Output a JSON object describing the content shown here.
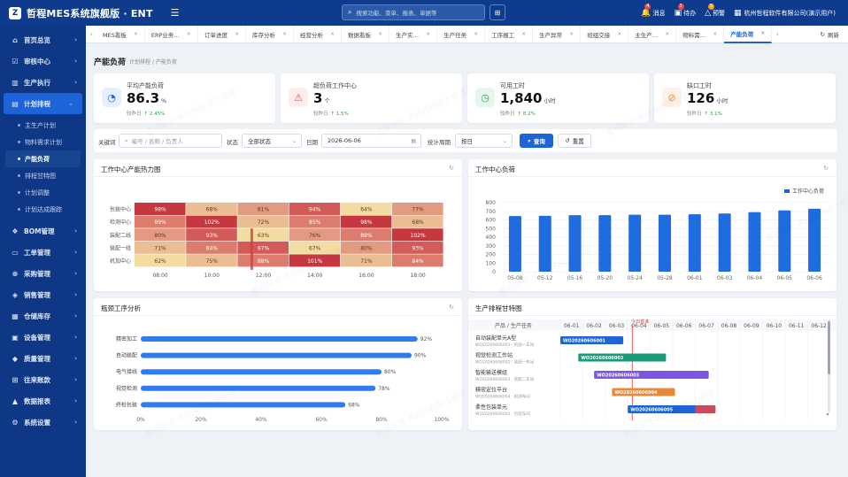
{
  "header": {
    "logo_char": "Z",
    "title": "哲程MES系统旗舰版 · ENT",
    "search_placeholder": "搜索功能、菜单、报表、单据等",
    "icons": [
      {
        "label": "消息",
        "badge": "4",
        "badge_color": "#e84a4a"
      },
      {
        "label": "待办",
        "badge": "3",
        "badge_color": "#e84a4a"
      },
      {
        "label": "预警",
        "badge": "5",
        "badge_color": "#f0a020"
      }
    ],
    "company": "杭州哲程软件有限公司(演示用户)"
  },
  "sidebar": {
    "items": [
      {
        "icon": "home-icon",
        "label": "首页总览"
      },
      {
        "icon": "audit-icon",
        "label": "审核中心"
      },
      {
        "icon": "factory-icon",
        "label": "生产执行"
      },
      {
        "icon": "calendar-icon",
        "label": "计划排程",
        "active": true,
        "subs": [
          "主生产计划",
          "物料需求计划",
          "产能负荷",
          "排程甘特图",
          "计划调整",
          "计划达成跟踪"
        ],
        "active_sub": 2
      },
      {
        "icon": "bom-icon",
        "label": "BOM管理"
      },
      {
        "icon": "order-icon",
        "label": "工单管理"
      },
      {
        "icon": "cart-icon",
        "label": "采购管理"
      },
      {
        "icon": "sales-icon",
        "label": "销售管理"
      },
      {
        "icon": "warehouse-icon",
        "label": "仓储库存"
      },
      {
        "icon": "device-icon",
        "label": "设备管理"
      },
      {
        "icon": "quality-icon",
        "label": "质量管理"
      },
      {
        "icon": "finance-icon",
        "label": "往来账款"
      },
      {
        "icon": "report-icon",
        "label": "数据报表"
      },
      {
        "icon": "gear-icon",
        "label": "系统设置"
      }
    ]
  },
  "tabs": [
    "MES看板",
    "ERP业务…",
    "订单进度",
    "库存分析",
    "经营分析",
    "数据看板",
    "生产实…",
    "生产任务",
    "工序报工",
    "生产异常",
    "班组交接",
    "主生产…",
    "物料需…",
    "产能负荷"
  ],
  "active_tab": 13,
  "refresh_label": "刷新",
  "page": {
    "title": "产能负荷",
    "breadcrumb": "计划排程 / 产能负荷"
  },
  "kpis": [
    {
      "label": "平均产能负荷",
      "value": "86.3",
      "unit": "%",
      "trend_label": "较昨日",
      "trend": "↑ 2.45%",
      "icon": "gauge-icon",
      "icon_bg": "#e6efff",
      "icon_color": "#1d64d8"
    },
    {
      "label": "超负荷工作中心",
      "value": "3",
      "unit": "个",
      "trend_label": "较昨日",
      "trend": "↑ 1.5%",
      "icon": "warning-icon",
      "icon_bg": "#ffecec",
      "icon_color": "#e84a4a"
    },
    {
      "label": "可用工时",
      "value": "1,840",
      "unit": "小时",
      "trend_label": "较昨日",
      "trend": "↑ 8.2%",
      "icon": "clock-icon",
      "icon_bg": "#e7f6ec",
      "icon_color": "#2aa14a"
    },
    {
      "label": "缺口工时",
      "value": "126",
      "unit": "小时",
      "trend_label": "较昨日",
      "trend": "↑ 3.1%",
      "icon": "ban-icon",
      "icon_bg": "#fff1e4",
      "icon_color": "#f08c2c"
    }
  ],
  "filter": {
    "keyword_label": "关键词",
    "keyword_placeholder": "编号 / 名称 / 负责人",
    "status_label": "状态",
    "status_value": "全部状态",
    "date_label": "日期",
    "date_value": "2026-06-06",
    "period_label": "统计周期",
    "period_value": "按日",
    "query_label": "查询",
    "reset_label": "重置"
  },
  "heatmap": {
    "title": "工作中心产能热力图",
    "rows": [
      "包装中心",
      "检测中心",
      "装配二线",
      "装配一线",
      "机加中心"
    ],
    "cols": [
      "08:00",
      "10:00",
      "12:00",
      "14:00",
      "16:00",
      "18:00"
    ],
    "values": [
      [
        98,
        68,
        81,
        94,
        64,
        77
      ],
      [
        89,
        102,
        72,
        85,
        98,
        68
      ],
      [
        80,
        93,
        63,
        76,
        89,
        102
      ],
      [
        71,
        84,
        97,
        67,
        80,
        93
      ],
      [
        62,
        75,
        88,
        101,
        71,
        84
      ]
    ]
  },
  "chart_data": [
    {
      "type": "bar",
      "title": "工作中心负荷",
      "legend": "工作中心负荷",
      "legend_position": "top-right",
      "categories": [
        "05-08",
        "05-12",
        "05-16",
        "05-20",
        "05-24",
        "05-28",
        "06-01",
        "06-03",
        "06-04",
        "06-05",
        "06-06"
      ],
      "values": [
        645,
        648,
        655,
        655,
        660,
        660,
        665,
        675,
        690,
        710,
        730
      ],
      "ylim": [
        0,
        800
      ],
      "yticks": [
        0,
        100,
        200,
        300,
        400,
        500,
        600,
        700,
        800
      ],
      "grid": true
    },
    {
      "type": "bar",
      "title": "瓶颈工序分析",
      "orientation": "horizontal",
      "categories": [
        "精密加工",
        "自动装配",
        "电气接线",
        "视觉检测",
        "终检包装"
      ],
      "values": [
        92,
        90,
        80,
        78,
        68
      ],
      "xlim": [
        0,
        100
      ],
      "xticks": [
        "0%",
        "20%",
        "40%",
        "60%",
        "80%",
        "100%"
      ]
    }
  ],
  "gantt": {
    "title": "生产排程甘特图",
    "header_label": "产品 / 生产任务",
    "dates": [
      "06-01",
      "06-02",
      "06-03",
      "06-04",
      "06-05",
      "06-06",
      "06-07",
      "06-08",
      "06-09",
      "06-10",
      "06-11",
      "06-12"
    ],
    "today_label": "今日基准",
    "today_pos": 3.2,
    "tasks": [
      {
        "name": "自动装配单元A型",
        "sub": "WO20260606001 · 机加一车间",
        "code": "WO20260606001",
        "start": 0,
        "end": 2.8,
        "color": "#1d64d8"
      },
      {
        "name": "视觉检测工作站",
        "sub": "WO20260606002 · 装配一车间",
        "code": "WO20260606002",
        "start": 0.8,
        "end": 4.7,
        "color": "#1a9a78"
      },
      {
        "name": "智能输送模组",
        "sub": "WO20260606003 · 装配二车间",
        "code": "WO20260606003",
        "start": 1.5,
        "end": 6.6,
        "color": "#7b57e0"
      },
      {
        "name": "精密定位平台",
        "sub": "WO20260606004 · 检测车间",
        "code": "WO20260606004",
        "start": 2.3,
        "end": 5.1,
        "color": "#e8893a"
      },
      {
        "name": "柔性包装单元",
        "sub": "WO20260606005 · 包装车间",
        "code": "WO20260606005",
        "start": 3.0,
        "end": 6.9,
        "color": "#1d64d8",
        "overload_from": 6.0,
        "overload_color": "#c94c5e"
      }
    ]
  },
  "watermark": "哲程软件·未经授权禁止使用"
}
